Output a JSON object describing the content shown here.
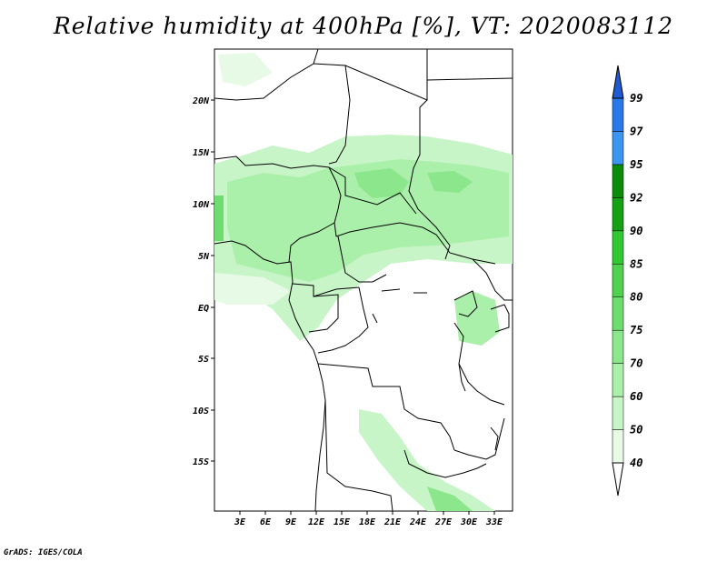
{
  "title": "Relative humidity at 400hPa [%], VT: 2020083112",
  "credit": "GrADS: IGES/COLA",
  "map": {
    "lat_ticks": [
      "20N",
      "15N",
      "10N",
      "5N",
      "EQ",
      "5S",
      "10S",
      "15S"
    ],
    "lon_ticks": [
      "3E",
      "6E",
      "9E",
      "12E",
      "15E",
      "18E",
      "21E",
      "24E",
      "27E",
      "30E",
      "33E"
    ]
  },
  "colorbar": {
    "levels": [
      "40",
      "50",
      "60",
      "70",
      "75",
      "80",
      "85",
      "90",
      "92",
      "95",
      "97",
      "99"
    ],
    "colors": [
      "#ffffff",
      "#e6fae6",
      "#c8f5c8",
      "#aaf0aa",
      "#8ce68c",
      "#6edc6e",
      "#50d250",
      "#32c832",
      "#16a016",
      "#0a8c0a",
      "#3c96f0",
      "#2878e6",
      "#1e5ad2"
    ]
  }
}
